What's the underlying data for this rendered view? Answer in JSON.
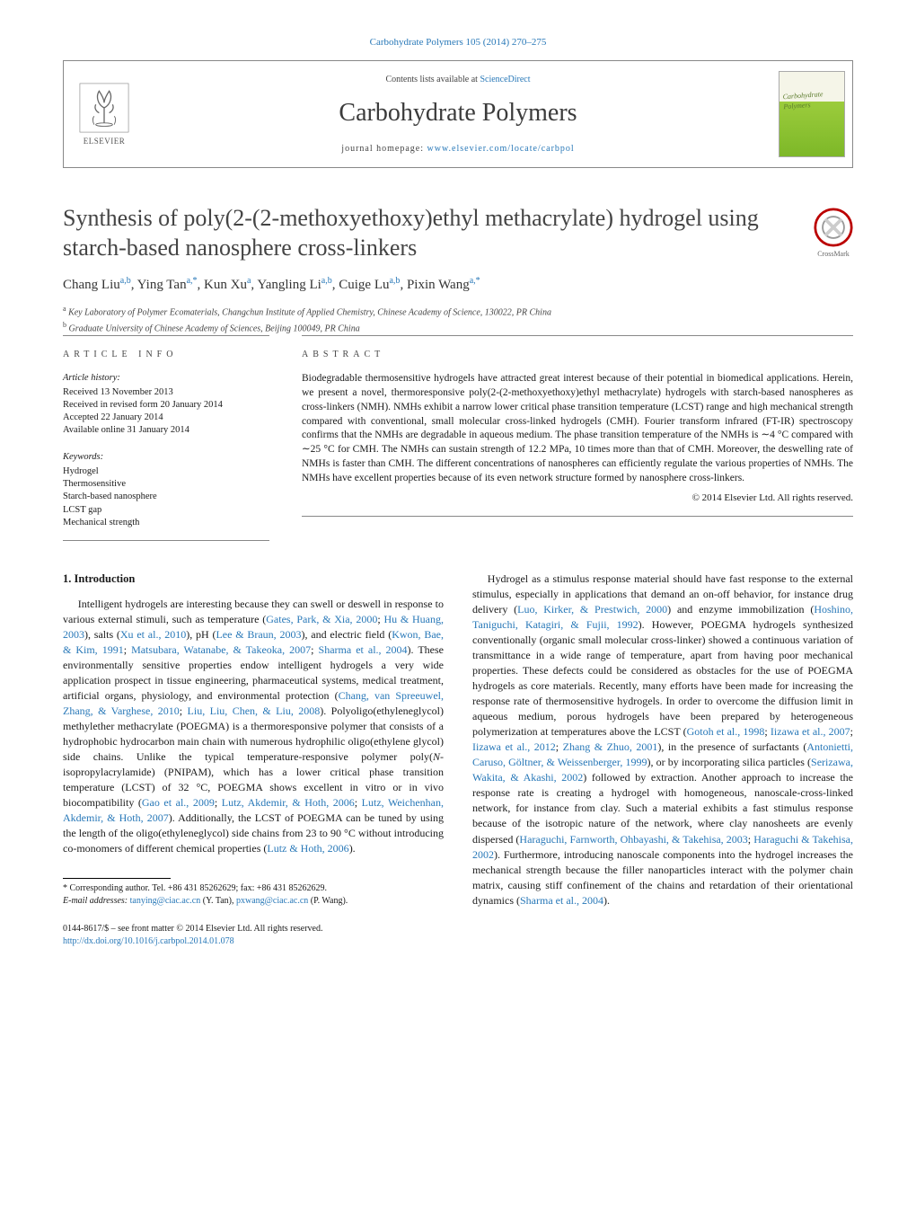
{
  "header": {
    "citation": "Carbohydrate Polymers 105 (2014) 270–275",
    "contentsPrefix": "Contents lists available at ",
    "contentsLink": "ScienceDirect",
    "journalTitle": "Carbohydrate Polymers",
    "homepagePrefix": "journal homepage: ",
    "homepageUrl": "www.elsevier.com/locate/carbpol",
    "elsevierLabel": "ELSEVIER",
    "coverTitle": "Carbohydrate Polymers",
    "crossmark": "CrossMark"
  },
  "article": {
    "title": "Synthesis of poly(2-(2-methoxyethoxy)ethyl methacrylate) hydrogel using starch-based nanosphere cross-linkers",
    "authors": [
      {
        "name": "Chang Liu",
        "marks": "a,b"
      },
      {
        "name": "Ying Tan",
        "marks": "a,*"
      },
      {
        "name": "Kun Xu",
        "marks": "a"
      },
      {
        "name": "Yangling Li",
        "marks": "a,b"
      },
      {
        "name": "Cuige Lu",
        "marks": "a,b"
      },
      {
        "name": "Pixin Wang",
        "marks": "a,*"
      }
    ],
    "affiliations": [
      {
        "mark": "a",
        "text": "Key Laboratory of Polymer Ecomaterials, Changchun Institute of Applied Chemistry, Chinese Academy of Science, 130022, PR China"
      },
      {
        "mark": "b",
        "text": "Graduate University of Chinese Academy of Sciences, Beijing 100049, PR China"
      }
    ]
  },
  "info": {
    "labelLeft": "article info",
    "labelRight": "abstract",
    "historyHead": "Article history:",
    "history": [
      "Received 13 November 2013",
      "Received in revised form 20 January 2014",
      "Accepted 22 January 2014",
      "Available online 31 January 2014"
    ],
    "keywordsHead": "Keywords:",
    "keywords": [
      "Hydrogel",
      "Thermosensitive",
      "Starch-based nanosphere",
      "LCST gap",
      "Mechanical strength"
    ],
    "abstract": "Biodegradable thermosensitive hydrogels have attracted great interest because of their potential in biomedical applications. Herein, we present a novel, thermoresponsive poly(2-(2-methoxyethoxy)ethyl methacrylate) hydrogels with starch-based nanospheres as cross-linkers (NMH). NMHs exhibit a narrow lower critical phase transition temperature (LCST) range and high mechanical strength compared with conventional, small molecular cross-linked hydrogels (CMH). Fourier transform infrared (FT-IR) spectroscopy confirms that the NMHs are degradable in aqueous medium. The phase transition temperature of the NMHs is ∼4 °C compared with ∼25 °C for CMH. The NMHs can sustain strength of 12.2 MPa, 10 times more than that of CMH. Moreover, the deswelling rate of NMHs is faster than CMH. The different concentrations of nanospheres can efficiently regulate the various properties of NMHs. The NMHs have excellent properties because of its even network structure formed by nanosphere cross-linkers.",
    "copyright": "© 2014 Elsevier Ltd. All rights reserved."
  },
  "body": {
    "sec1": "1.  Introduction",
    "leftParas": [
      "Intelligent hydrogels are interesting because they can swell or deswell in response to various external stimuli, such as temperature (<a class=\"ref\">Gates, Park, & Xia, 2000</a>; <a class=\"ref\">Hu & Huang, 2003</a>), salts (<a class=\"ref\">Xu et al., 2010</a>), pH (<a class=\"ref\">Lee & Braun, 2003</a>), and electric field (<a class=\"ref\">Kwon, Bae, & Kim, 1991</a>; <a class=\"ref\">Matsubara, Watanabe, & Takeoka, 2007</a>; <a class=\"ref\">Sharma et al., 2004</a>). These environmentally sensitive properties endow intelligent hydrogels a very wide application prospect in tissue engineering, pharmaceutical systems, medical treatment, artificial organs, physiology, and environmental protection (<a class=\"ref\">Chang, van Spreeuwel, Zhang, & Varghese, 2010</a>; <a class=\"ref\">Liu, Liu, Chen, & Liu, 2008</a>). Polyoligo(ethyleneglycol) methylether methacrylate (POEGMA) is a thermoresponsive polymer that consists of a hydrophobic hydrocarbon main chain with numerous hydrophilic oligo(ethylene glycol) side chains. Unlike the typical temperature-responsive polymer poly(<span class=\"sub\">N</span>-isopropylacrylamide) (PNIPAM), which has a lower critical phase transition temperature (LCST) of 32 °C, POEGMA shows excellent in vitro or in vivo biocompatibility (<a class=\"ref\">Gao et al., 2009</a>; <a class=\"ref\">Lutz, Akdemir, & Hoth, 2006</a>; <a class=\"ref\">Lutz, Weichenhan, Akdemir, & Hoth, 2007</a>). Additionally, the LCST of POEGMA can be tuned by using the length of the oligo(ethyleneglycol) side chains from 23 to 90 °C without introducing co-monomers of different chemical properties (<a class=\"ref\">Lutz & Hoth, 2006</a>)."
    ],
    "rightParas": [
      "Hydrogel as a stimulus response material should have fast response to the external stimulus, especially in applications that demand an on-off behavior, for instance drug delivery (<a class=\"ref\">Luo, Kirker, & Prestwich, 2000</a>) and enzyme immobilization (<a class=\"ref\">Hoshino, Taniguchi, Katagiri, & Fujii, 1992</a>). However, POEGMA hydrogels synthesized conventionally (organic small molecular cross-linker) showed a continuous variation of transmittance in a wide range of temperature, apart from having poor mechanical properties. These defects could be considered as obstacles for the use of POEGMA hydrogels as core materials. Recently, many efforts have been made for increasing the response rate of thermosensitive hydrogels. In order to overcome the diffusion limit in aqueous medium, porous hydrogels have been prepared by heterogeneous polymerization at temperatures above the LCST (<a class=\"ref\">Gotoh et al., 1998</a>; <a class=\"ref\">Iizawa et al., 2007</a>; <a class=\"ref\">Iizawa et al., 2012</a>; <a class=\"ref\">Zhang & Zhuo, 2001</a>), in the presence of surfactants (<a class=\"ref\">Antonietti, Caruso, Göltner, & Weissenberger, 1999</a>), or by incorporating silica particles (<a class=\"ref\">Serizawa, Wakita, & Akashi, 2002</a>) followed by extraction. Another approach to increase the response rate is creating a hydrogel with homogeneous, nanoscale-cross-linked network, for instance from clay. Such a material exhibits a fast stimulus response because of the isotropic nature of the network, where clay nanosheets are evenly dispersed (<a class=\"ref\">Haraguchi, Farnworth, Ohbayashi, & Takehisa, 2003</a>; <a class=\"ref\">Haraguchi & Takehisa, 2002</a>). Furthermore, introducing nanoscale components into the hydrogel increases the mechanical strength because the filler nanoparticles interact with the polymer chain matrix, causing stiff confinement of the chains and retardation of their orientational dynamics (<a class=\"ref\">Sharma et al., 2004</a>)."
    ]
  },
  "footnote": {
    "corrLine": "* Corresponding author. Tel. +86 431 85262629; fax: +86 431 85262629.",
    "emailLabel": "E-mail addresses: ",
    "email1": "tanying@ciac.ac.cn",
    "email1who": " (Y. Tan), ",
    "email2": "pxwang@ciac.ac.cn",
    "email2who": " (P. Wang)."
  },
  "doi": {
    "line1": "0144-8617/$ – see front matter © 2014 Elsevier Ltd. All rights reserved.",
    "url": "http://dx.doi.org/10.1016/j.carbpol.2014.01.078"
  },
  "colors": {
    "link": "#2878b8",
    "text": "#1a1a1a",
    "rule": "#888888"
  }
}
